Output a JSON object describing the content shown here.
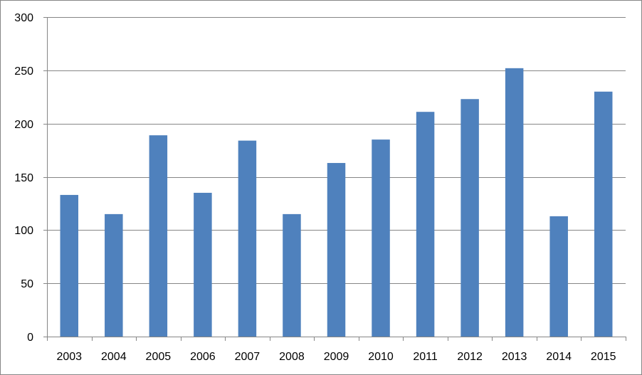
{
  "chart_data": {
    "type": "bar",
    "title": "",
    "xlabel": "",
    "ylabel": "",
    "categories": [
      "2003",
      "2004",
      "2005",
      "2006",
      "2007",
      "2008",
      "2009",
      "2010",
      "2011",
      "2012",
      "2013",
      "2014",
      "2015"
    ],
    "values": [
      133,
      115,
      189,
      135,
      184,
      115,
      163,
      185,
      211,
      223,
      252,
      113,
      230
    ],
    "ylim": [
      0,
      300
    ],
    "yticks": [
      "0",
      "50",
      "100",
      "150",
      "200",
      "250",
      "300"
    ],
    "grid": true,
    "legend": "none",
    "bar_color": "#4F81BD",
    "grid_color": "#868686"
  }
}
